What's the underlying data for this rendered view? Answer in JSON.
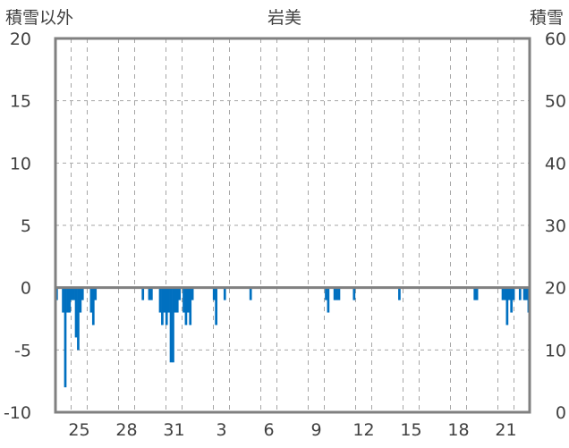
{
  "chart_data": {
    "type": "bar",
    "title": "岩美",
    "left_axis_label": "積雪以外",
    "right_axis_label": "積雪",
    "left_ylim": [
      -10,
      20
    ],
    "right_ylim": [
      0,
      60
    ],
    "left_ticks": [
      "20",
      "15",
      "10",
      "5",
      "0",
      "-5",
      "-10"
    ],
    "right_ticks": [
      "60",
      "50",
      "40",
      "30",
      "20",
      "10",
      "0"
    ],
    "x_tick_labels": [
      "25",
      "28",
      "31",
      "3",
      "6",
      "9",
      "12",
      "15",
      "18",
      "21"
    ],
    "grid": true,
    "bar_color": "#0070C0",
    "series": [
      {
        "values": [
          -1,
          0,
          0,
          -2,
          -8,
          -2,
          -2,
          -1,
          -1,
          -4,
          -5,
          -2,
          -1,
          0,
          0,
          0,
          -2,
          -3,
          -1,
          0,
          0,
          0,
          0,
          0,
          0,
          0,
          0,
          0,
          0,
          0,
          0,
          0,
          0,
          0,
          0,
          0,
          0,
          0,
          0,
          0,
          -1,
          0,
          0,
          -1,
          -1,
          0,
          0,
          0,
          -2,
          -3,
          -2,
          -3,
          -2,
          -6,
          -6,
          -2,
          -2,
          -1,
          0,
          -2,
          -3,
          -2,
          -3,
          -1,
          0,
          0,
          0,
          0,
          0,
          0,
          0,
          0,
          0,
          -1,
          -3,
          0,
          0,
          0,
          -1,
          0,
          0,
          0,
          0,
          0,
          0,
          0,
          0,
          0,
          0,
          0,
          -1,
          0,
          0,
          0,
          0,
          0,
          0,
          0,
          0,
          0,
          0,
          0,
          0,
          0,
          0,
          0,
          0,
          0,
          0,
          0,
          0,
          0,
          0,
          0,
          0,
          0,
          0,
          0,
          0,
          0,
          0,
          0,
          0,
          0,
          0,
          -1,
          -2,
          0,
          0,
          -1,
          -1,
          -1,
          0,
          0,
          0,
          0,
          0,
          0,
          -1,
          0,
          0,
          0,
          0,
          0,
          0,
          0,
          0,
          0,
          0,
          0,
          0,
          0,
          0,
          0,
          0,
          0,
          0,
          0,
          0,
          -1,
          0,
          0,
          0,
          0,
          0,
          0,
          0,
          0,
          0,
          0,
          0,
          0,
          0,
          0,
          0,
          0,
          0,
          0,
          0,
          0,
          0,
          0,
          0,
          0,
          0,
          0,
          0,
          0,
          0,
          0,
          0,
          0,
          0,
          0,
          -1,
          -1,
          0,
          0,
          0,
          0,
          0,
          0,
          0,
          0,
          0,
          0,
          0,
          -1,
          -1,
          -3,
          -1,
          -2,
          -1,
          0,
          0,
          -1,
          0,
          -1,
          -1,
          -2
        ]
      }
    ]
  }
}
